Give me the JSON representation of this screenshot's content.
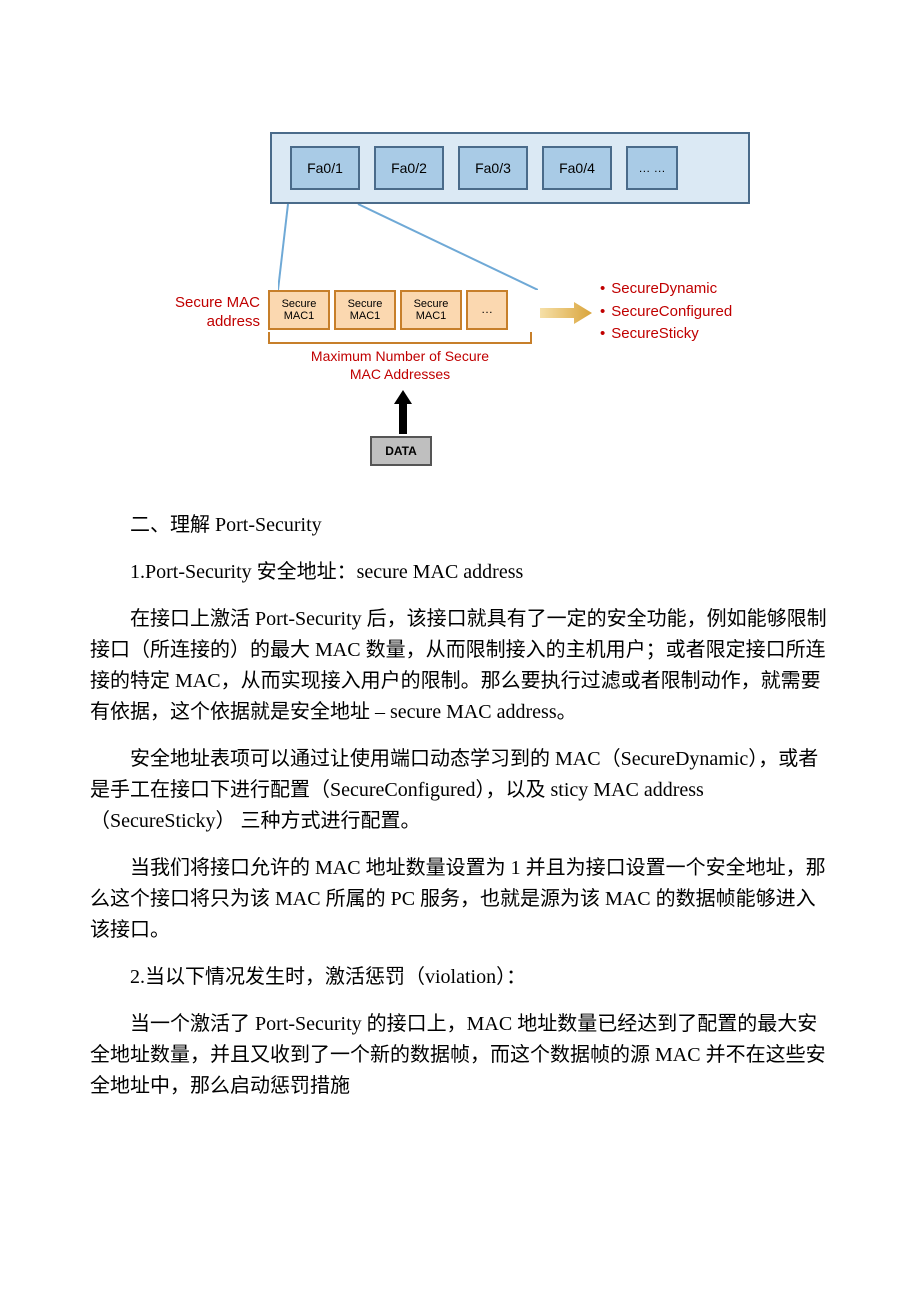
{
  "diagram": {
    "switch": {
      "bg": "#dbe9f4",
      "border": "#4a6b8a",
      "ports": [
        "Fa0/1",
        "Fa0/2",
        "Fa0/3",
        "Fa0/4",
        "… …"
      ],
      "port_bg": "#a9cbe6"
    },
    "secure_label_l1": "Secure MAC",
    "secure_label_l2": "address",
    "mac_boxes": [
      "Secure\nMAC1",
      "Secure\nMAC1",
      "Secure\nMAC1",
      "…"
    ],
    "mac_bg": "#fbd8b0",
    "mac_border": "#c77f2a",
    "max_label_l1": "Maximum Number of Secure",
    "max_label_l2": "MAC Addresses",
    "bullets": [
      "SecureDynamic",
      "SecureConfigured",
      "SecureSticky"
    ],
    "data_label": "DATA",
    "accent_red": "#c00000",
    "arrow_color": "#d9a43b"
  },
  "text": {
    "h1": "二、理解 Port-Security",
    "s1": "1.Port-Security 安全地址：secure MAC address",
    "p1": "在接口上激活 Port-Security 后，该接口就具有了一定的安全功能，例如能够限制接口（所连接的）的最大 MAC 数量，从而限制接入的主机用户；或者限定接口所连接的特定 MAC，从而实现接入用户的限制。那么要执行过滤或者限制动作，就需要有依据，这个依据就是安全地址 – secure MAC address。",
    "p2": "安全地址表项可以通过让使用端口动态学习到的 MAC（SecureDynamic），或者是手工在接口下进行配置（SecureConfigured），以及 sticy MAC address（SecureSticky） 三种方式进行配置。",
    "p3": "当我们将接口允许的 MAC 地址数量设置为 1 并且为接口设置一个安全地址，那么这个接口将只为该 MAC 所属的 PC 服务，也就是源为该 MAC 的数据帧能够进入该接口。",
    "s2": "2.当以下情况发生时，激活惩罚（violation）：",
    "p4": "当一个激活了 Port-Security 的接口上，MAC 地址数量已经达到了配置的最大安全地址数量，并且又收到了一个新的数据帧，而这个数据帧的源 MAC 并不在这些安全地址中，那么启动惩罚措施"
  }
}
